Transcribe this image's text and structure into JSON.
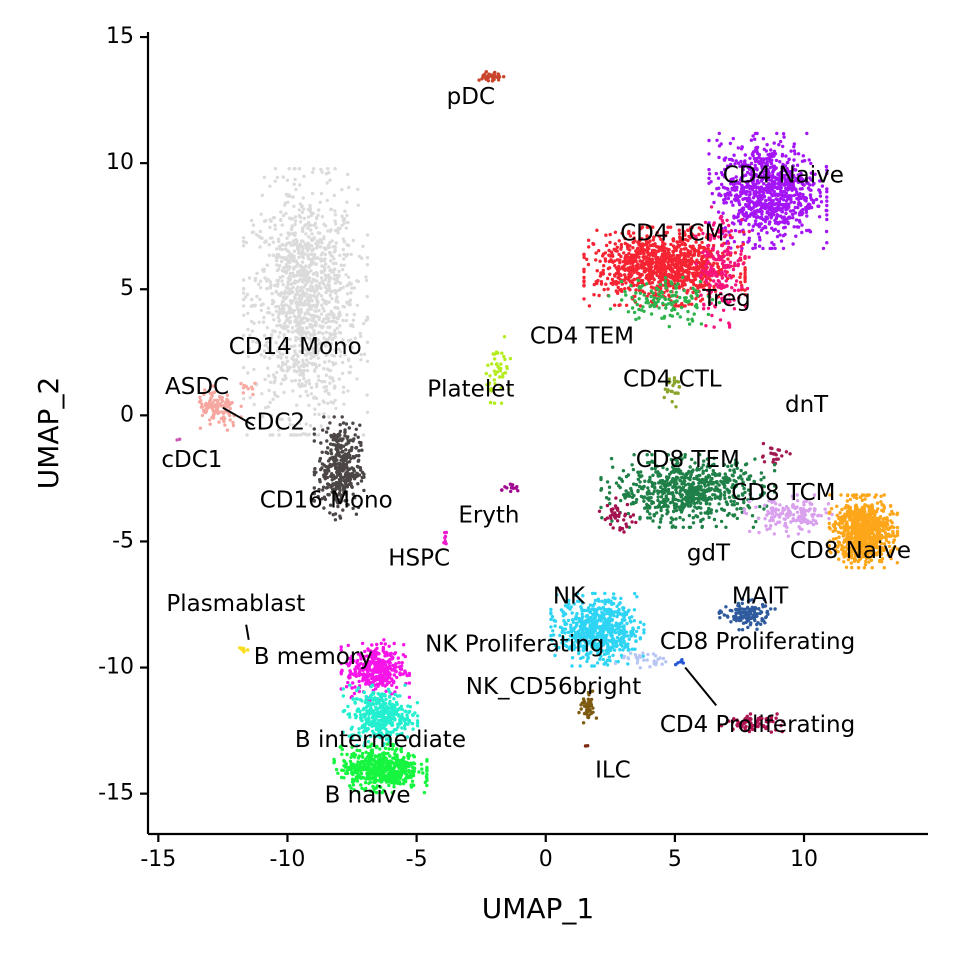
{
  "chart_data": {
    "type": "scatter",
    "title": "",
    "xlabel": "UMAP_1",
    "ylabel": "UMAP_2",
    "xlim": [
      -15.4,
      14.8
    ],
    "ylim": [
      -16.6,
      15.2
    ],
    "xticks": [
      -15,
      -10,
      -5,
      0,
      5,
      10
    ],
    "yticks": [
      15,
      10,
      5,
      0,
      -5,
      -10,
      -15
    ],
    "xtick_labels": [
      "-15",
      "-10",
      "-5",
      "0",
      "5",
      "10"
    ],
    "ytick_labels": [
      "15",
      "10",
      "5",
      "0",
      "-5",
      "-10",
      "-15"
    ],
    "grid": false,
    "legend": "none",
    "clusters": [
      {
        "name": "CD14 Mono",
        "color": "#dcdbdb",
        "cx": -9.3,
        "cy": 4.5,
        "sx": 1.0,
        "sy": 2.2,
        "n": 1300,
        "label": [
          -9.7,
          2.7
        ]
      },
      {
        "name": "CD16 Mono",
        "color": "#4d4646",
        "cx": -8.0,
        "cy": -2.1,
        "sx": 0.4,
        "sy": 0.85,
        "n": 380,
        "label": [
          -8.5,
          -3.4
        ]
      },
      {
        "name": "CD4 Naive",
        "color": "#a415f6",
        "cx": 8.6,
        "cy": 8.9,
        "sx": 0.95,
        "sy": 0.95,
        "n": 900,
        "label": [
          9.2,
          9.5
        ]
      },
      {
        "name": "CD4 TCM",
        "color": "#f62433",
        "cx": 4.6,
        "cy": 5.9,
        "sx": 1.3,
        "sy": 0.65,
        "n": 1100,
        "label": [
          4.9,
          7.2
        ]
      },
      {
        "name": "Treg",
        "color": "#f7137d",
        "cx": 6.8,
        "cy": 5.9,
        "sx": 0.45,
        "sy": 1.0,
        "n": 180,
        "label": [
          7.0,
          4.6
        ]
      },
      {
        "name": "CD4 TEM",
        "color": "#2db34c",
        "cx": 4.6,
        "cy": 4.6,
        "sx": 0.9,
        "sy": 0.45,
        "n": 130,
        "label": [
          1.4,
          3.1
        ]
      },
      {
        "name": "CD4 CTL",
        "color": "#8aa52a",
        "cx": 4.9,
        "cy": 1.1,
        "sx": 0.15,
        "sy": 0.35,
        "n": 22,
        "label": [
          4.9,
          1.4
        ]
      },
      {
        "name": "dnT",
        "color": "#a21a52",
        "cx": 8.8,
        "cy": -1.6,
        "sx": 0.3,
        "sy": 0.2,
        "n": 22,
        "label": [
          10.1,
          0.4
        ]
      },
      {
        "name": "CD8 TEM",
        "color": "#1f8048",
        "cx": 5.5,
        "cy": -3.0,
        "sx": 1.4,
        "sy": 0.6,
        "n": 700,
        "label": [
          5.5,
          -1.8
        ]
      },
      {
        "name": "gdT",
        "color": "#a3124f",
        "cx": 2.8,
        "cy": -4.0,
        "sx": 0.3,
        "sy": 0.3,
        "n": 40,
        "label": [
          6.3,
          -5.5
        ]
      },
      {
        "name": "CD8 TCM",
        "color": "#d9a0ee",
        "cx": 9.5,
        "cy": -4.0,
        "sx": 0.75,
        "sy": 0.35,
        "n": 160,
        "label": [
          9.2,
          -3.1
        ]
      },
      {
        "name": "CD8 Naive",
        "color": "#fda61a",
        "cx": 12.3,
        "cy": -4.6,
        "sx": 0.55,
        "sy": 0.6,
        "n": 800,
        "label": [
          11.8,
          -5.4
        ]
      },
      {
        "name": "MAIT",
        "color": "#2f5b9e",
        "cx": 7.8,
        "cy": -7.9,
        "sx": 0.45,
        "sy": 0.25,
        "n": 130,
        "label": [
          8.3,
          -7.2
        ]
      },
      {
        "name": "CD8 Proliferating",
        "color": "#2455d6",
        "cx": 5.2,
        "cy": -9.8,
        "sx": 0.1,
        "sy": 0.1,
        "n": 6,
        "label": [
          8.2,
          -9.0
        ]
      },
      {
        "name": "CD4 Proliferating",
        "color": "#b01453",
        "cx": 8.0,
        "cy": -12.2,
        "sx": 0.5,
        "sy": 0.15,
        "n": 80,
        "label": [
          8.2,
          -12.3
        ]
      },
      {
        "name": "NK",
        "color": "#2ed4f4",
        "cx": 2.0,
        "cy": -8.5,
        "sx": 0.75,
        "sy": 0.6,
        "n": 650,
        "label": [
          0.9,
          -7.2
        ]
      },
      {
        "name": "NK Proliferating",
        "color": "#b7c6f3",
        "cx": 3.9,
        "cy": -9.7,
        "sx": 0.55,
        "sy": 0.15,
        "n": 30,
        "label": [
          -1.2,
          -9.1
        ]
      },
      {
        "name": "NK_CD56bright",
        "color": "#7d5a10",
        "cx": 1.6,
        "cy": -11.6,
        "sx": 0.15,
        "sy": 0.3,
        "n": 40,
        "label": [
          0.3,
          -10.8
        ]
      },
      {
        "name": "ILC",
        "color": "#7d2a10",
        "cx": 1.6,
        "cy": -13.1,
        "sx": 0.03,
        "sy": 0.03,
        "n": 2,
        "label": [
          2.6,
          -14.1
        ]
      },
      {
        "name": "B memory",
        "color": "#f614e8",
        "cx": -6.6,
        "cy": -10.1,
        "sx": 0.55,
        "sy": 0.5,
        "n": 350,
        "label": [
          -9.0,
          -9.6
        ]
      },
      {
        "name": "B intermediate",
        "color": "#23efcf",
        "cx": -6.4,
        "cy": -11.9,
        "sx": 0.6,
        "sy": 0.5,
        "n": 380,
        "label": [
          -6.4,
          -12.9
        ]
      },
      {
        "name": "B naive",
        "color": "#16f540",
        "cx": -6.4,
        "cy": -14.0,
        "sx": 0.75,
        "sy": 0.4,
        "n": 550,
        "label": [
          -6.9,
          -15.1
        ]
      },
      {
        "name": "Plasmablast",
        "color": "#f9dc1a",
        "cx": -11.7,
        "cy": -9.3,
        "sx": 0.1,
        "sy": 0.08,
        "n": 8,
        "label": [
          -12.0,
          -7.5
        ]
      },
      {
        "name": "pDC",
        "color": "#c9452a",
        "cx": -2.1,
        "cy": 13.4,
        "sx": 0.2,
        "sy": 0.12,
        "n": 35,
        "label": [
          -2.9,
          12.6
        ]
      },
      {
        "name": "Platelet",
        "color": "#b4ec1f",
        "cx": -1.8,
        "cy": 1.8,
        "sx": 0.25,
        "sy": 0.55,
        "n": 45,
        "label": [
          -2.9,
          1.0
        ]
      },
      {
        "name": "Eryth",
        "color": "#a10a90",
        "cx": -1.3,
        "cy": -2.9,
        "sx": 0.2,
        "sy": 0.07,
        "n": 14,
        "label": [
          -2.2,
          -4.0
        ]
      },
      {
        "name": "HSPC",
        "color": "#ed1bcd",
        "cx": -3.9,
        "cy": -4.9,
        "sx": 0.1,
        "sy": 0.15,
        "n": 8,
        "label": [
          -4.9,
          -5.7
        ]
      },
      {
        "name": "cDC2",
        "color": "#f6a7a0",
        "cx": -12.7,
        "cy": 0.2,
        "sx": 0.4,
        "sy": 0.4,
        "n": 110,
        "label": [
          -10.5,
          -0.3
        ]
      },
      {
        "name": "ASDC",
        "color": "#f7a9a2",
        "cx": -11.5,
        "cy": 1.1,
        "sx": 0.2,
        "sy": 0.15,
        "n": 10,
        "label": [
          -13.5,
          1.1
        ]
      },
      {
        "name": "cDC1",
        "color": "#cb58b6",
        "cx": -14.2,
        "cy": -0.9,
        "sx": 0.05,
        "sy": 0.05,
        "n": 2,
        "label": [
          -13.7,
          -1.8
        ]
      }
    ],
    "label_leaders": [
      {
        "from": [
          -12.5,
          0.3
        ],
        "to": [
          -11.3,
          -0.4
        ]
      },
      {
        "from": [
          -11.6,
          -8.3
        ],
        "to": [
          -11.5,
          -8.9
        ]
      },
      {
        "from": [
          5.4,
          -10.0
        ],
        "to": [
          6.6,
          -11.5
        ]
      }
    ]
  }
}
